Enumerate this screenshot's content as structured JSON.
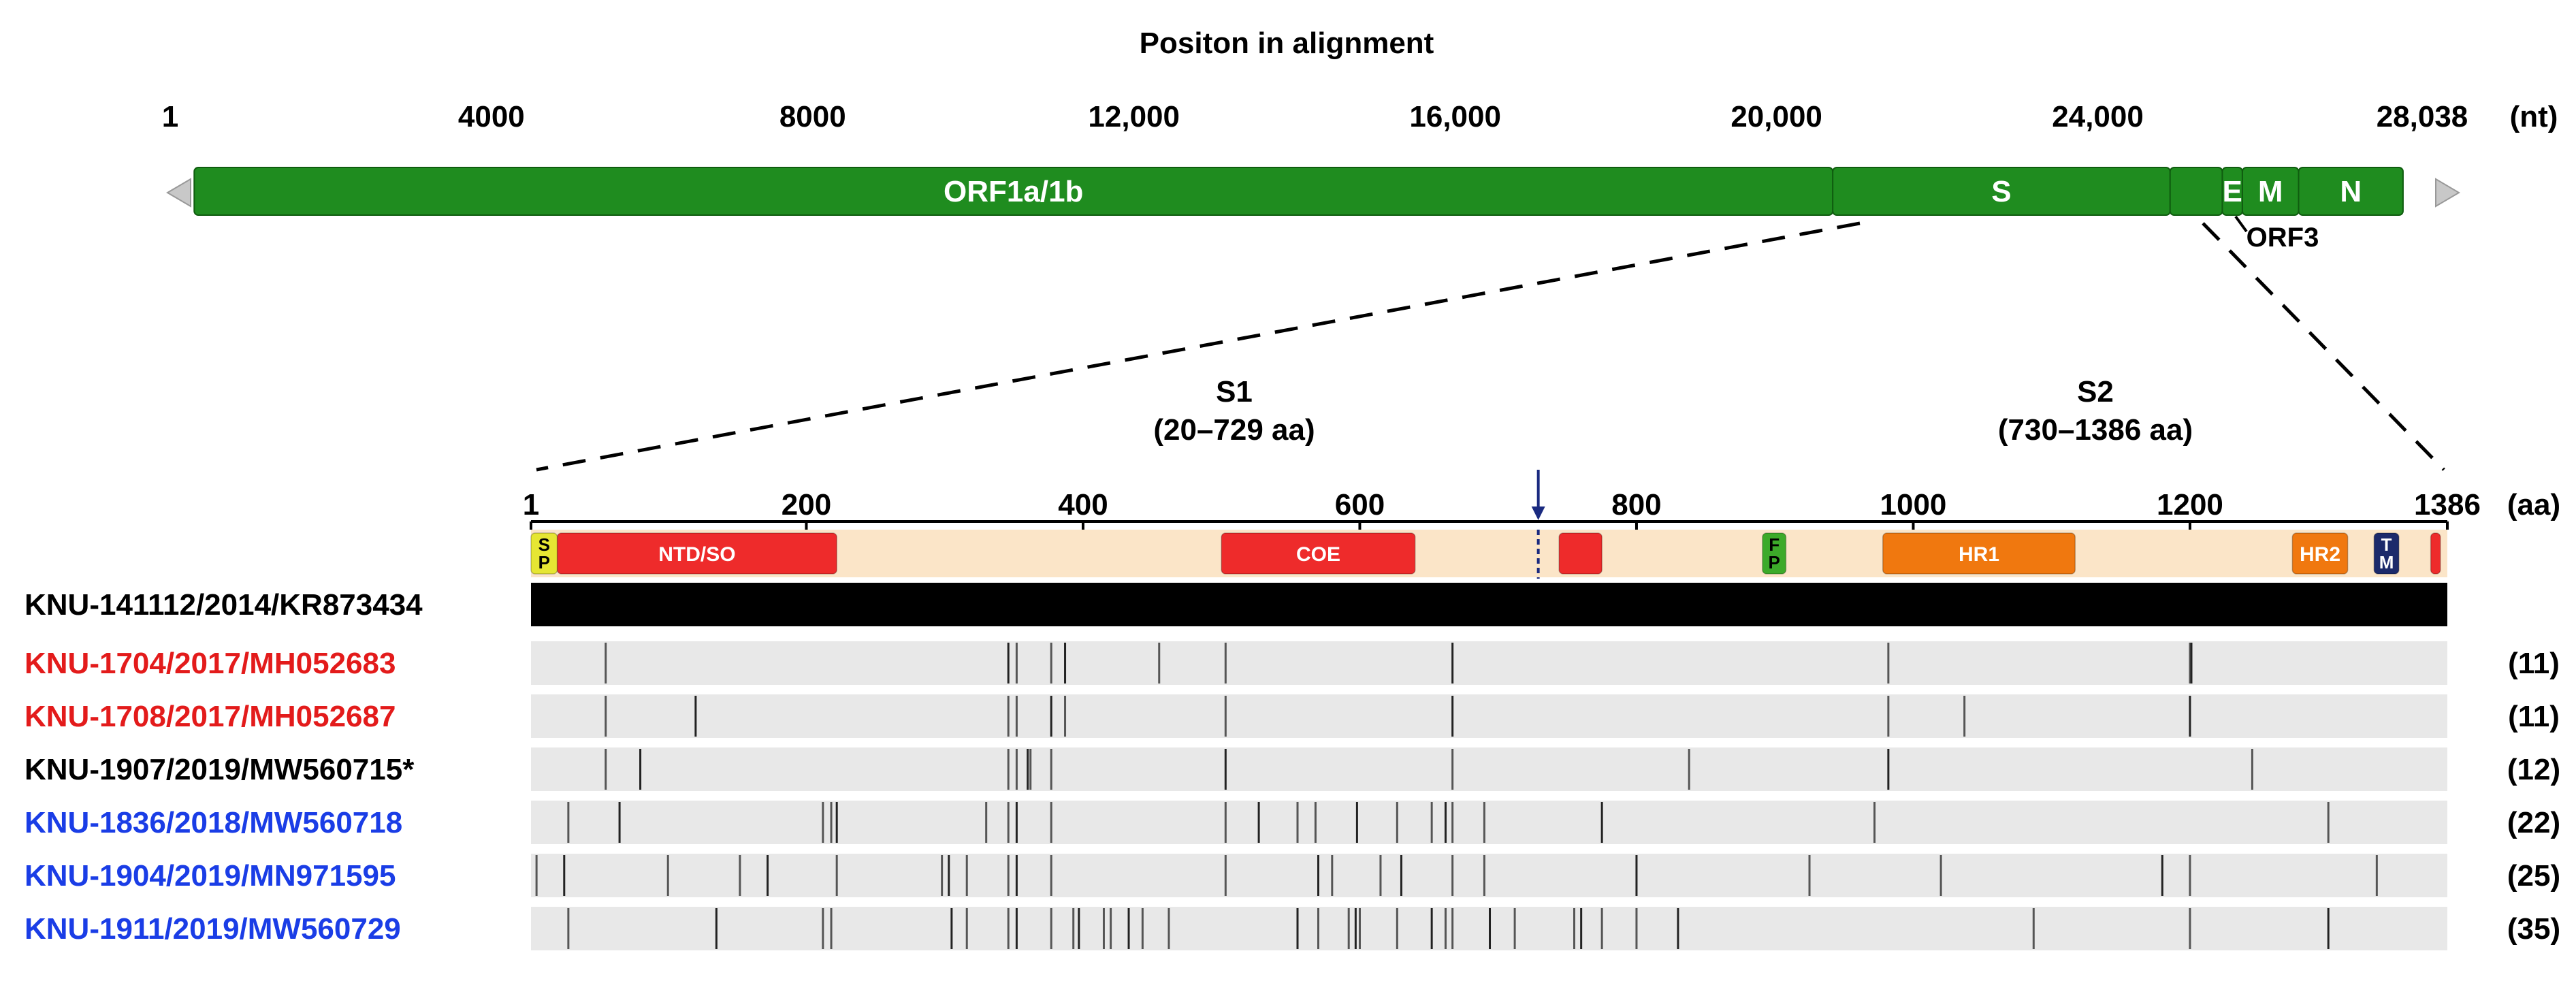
{
  "title": "Positon in alignment",
  "genome": {
    "unit": "(nt)",
    "min": 1,
    "max": 28038,
    "ticks": [
      {
        "value": 1,
        "label": "1"
      },
      {
        "value": 4000,
        "label": "4000"
      },
      {
        "value": 8000,
        "label": "8000"
      },
      {
        "value": 12000,
        "label": "12,000"
      },
      {
        "value": 16000,
        "label": "16,000"
      },
      {
        "value": 20000,
        "label": "20,000"
      },
      {
        "value": 24000,
        "label": "24,000"
      },
      {
        "value": 28038,
        "label": "28,038"
      }
    ],
    "genes": [
      {
        "label": "ORF1a/1b",
        "start": 300,
        "end": 20700
      },
      {
        "label": "S",
        "start": 20700,
        "end": 24900
      },
      {
        "label": "",
        "start": 24900,
        "end": 25550
      },
      {
        "label": "E",
        "start": 25550,
        "end": 25800
      },
      {
        "label": "M",
        "start": 25800,
        "end": 26500
      },
      {
        "label": "N",
        "start": 26500,
        "end": 27800
      }
    ],
    "orf3_label": "ORF3",
    "colors": {
      "gene": "#1f8c1f",
      "gene_edge": "#0f5c0f",
      "utr": "#c8c8c8"
    }
  },
  "spike": {
    "unit": "(aa)",
    "min": 1,
    "max": 1386,
    "ticks": [
      {
        "value": 1,
        "label": "1"
      },
      {
        "value": 200,
        "label": "200"
      },
      {
        "value": 400,
        "label": "400"
      },
      {
        "value": 600,
        "label": "600"
      },
      {
        "value": 800,
        "label": "800"
      },
      {
        "value": 1000,
        "label": "1000"
      },
      {
        "value": 1200,
        "label": "1200"
      },
      {
        "value": 1386,
        "label": "1386"
      }
    ],
    "s1": {
      "name": "S1",
      "range": "(20–729 aa)"
    },
    "s2": {
      "name": "S2",
      "range": "(730–1386 aa)"
    },
    "cleavage_site": 729,
    "domains": [
      {
        "label": "S\nP",
        "start": 1,
        "end": 20,
        "color": "#e6e633",
        "text_color": "#000000"
      },
      {
        "label": "NTD/SO",
        "start": 20,
        "end": 222,
        "color": "#ee2b2b",
        "text_color": "#ffffff"
      },
      {
        "label": "COE",
        "start": 500,
        "end": 640,
        "color": "#ee2b2b",
        "text_color": "#ffffff"
      },
      {
        "label": "",
        "start": 744,
        "end": 775,
        "color": "#ee2b2b",
        "text_color": "#ffffff"
      },
      {
        "label": "F\nP",
        "start": 891,
        "end": 908,
        "color": "#3caa2a",
        "text_color": "#000000"
      },
      {
        "label": "HR1",
        "start": 978,
        "end": 1117,
        "color": "#f0780f",
        "text_color": "#ffffff"
      },
      {
        "label": "HR2",
        "start": 1274,
        "end": 1314,
        "color": "#f0780f",
        "text_color": "#ffffff"
      },
      {
        "label": "T\nM",
        "start": 1333,
        "end": 1351,
        "color": "#1c2a6b",
        "text_color": "#ffffff"
      },
      {
        "label": "",
        "start": 1374,
        "end": 1381,
        "color": "#ee2b2b",
        "text_color": "#ffffff"
      }
    ],
    "band_color": "#fbe5c8",
    "marker_color": "#1a2a80"
  },
  "strains": [
    {
      "name": "KNU-141112/2014/KR873434",
      "color": "#000000",
      "count": "",
      "reference": true,
      "mutations": []
    },
    {
      "name": "KNU-1704/2017/MH052683",
      "color": "#e31b1b",
      "count": "(11)",
      "reference": false,
      "mutations": [
        55,
        346,
        352,
        377,
        387,
        455,
        503,
        667,
        982,
        1200,
        1201
      ]
    },
    {
      "name": "KNU-1708/2017/MH052687",
      "color": "#e31b1b",
      "count": "(11)",
      "reference": false,
      "mutations": [
        55,
        120,
        346,
        352,
        377,
        387,
        503,
        667,
        982,
        1037,
        1200
      ]
    },
    {
      "name": "KNU-1907/2019/MW560715*",
      "color": "#000000",
      "count": "(12)",
      "reference": false,
      "mutations": [
        55,
        80,
        346,
        352,
        360,
        362,
        377,
        503,
        667,
        838,
        982,
        1245
      ]
    },
    {
      "name": "KNU-1836/2018/MW560718",
      "color": "#1a3de6",
      "count": "(22)",
      "reference": false,
      "mutations": [
        28,
        65,
        212,
        218,
        222,
        330,
        346,
        352,
        377,
        503,
        527,
        555,
        568,
        598,
        627,
        652,
        662,
        667,
        690,
        775,
        972,
        1300
      ]
    },
    {
      "name": "KNU-1904/2019/MN971595",
      "color": "#1a3de6",
      "count": "(25)",
      "reference": false,
      "mutations": [
        5,
        25,
        100,
        152,
        172,
        222,
        298,
        303,
        316,
        346,
        352,
        377,
        503,
        570,
        580,
        615,
        630,
        667,
        690,
        800,
        925,
        1020,
        1180,
        1200,
        1335
      ]
    },
    {
      "name": "KNU-1911/2019/MW560729",
      "color": "#1a3de6",
      "count": "(35)",
      "reference": false,
      "mutations": [
        28,
        135,
        212,
        218,
        305,
        316,
        346,
        352,
        377,
        393,
        397,
        415,
        420,
        433,
        443,
        462,
        555,
        570,
        592,
        597,
        600,
        627,
        652,
        662,
        667,
        694,
        712,
        755,
        760,
        775,
        800,
        830,
        1087,
        1200,
        1300
      ]
    }
  ],
  "reference_bar_color": "#000000",
  "variant_bar_color": "#e8e8e8"
}
